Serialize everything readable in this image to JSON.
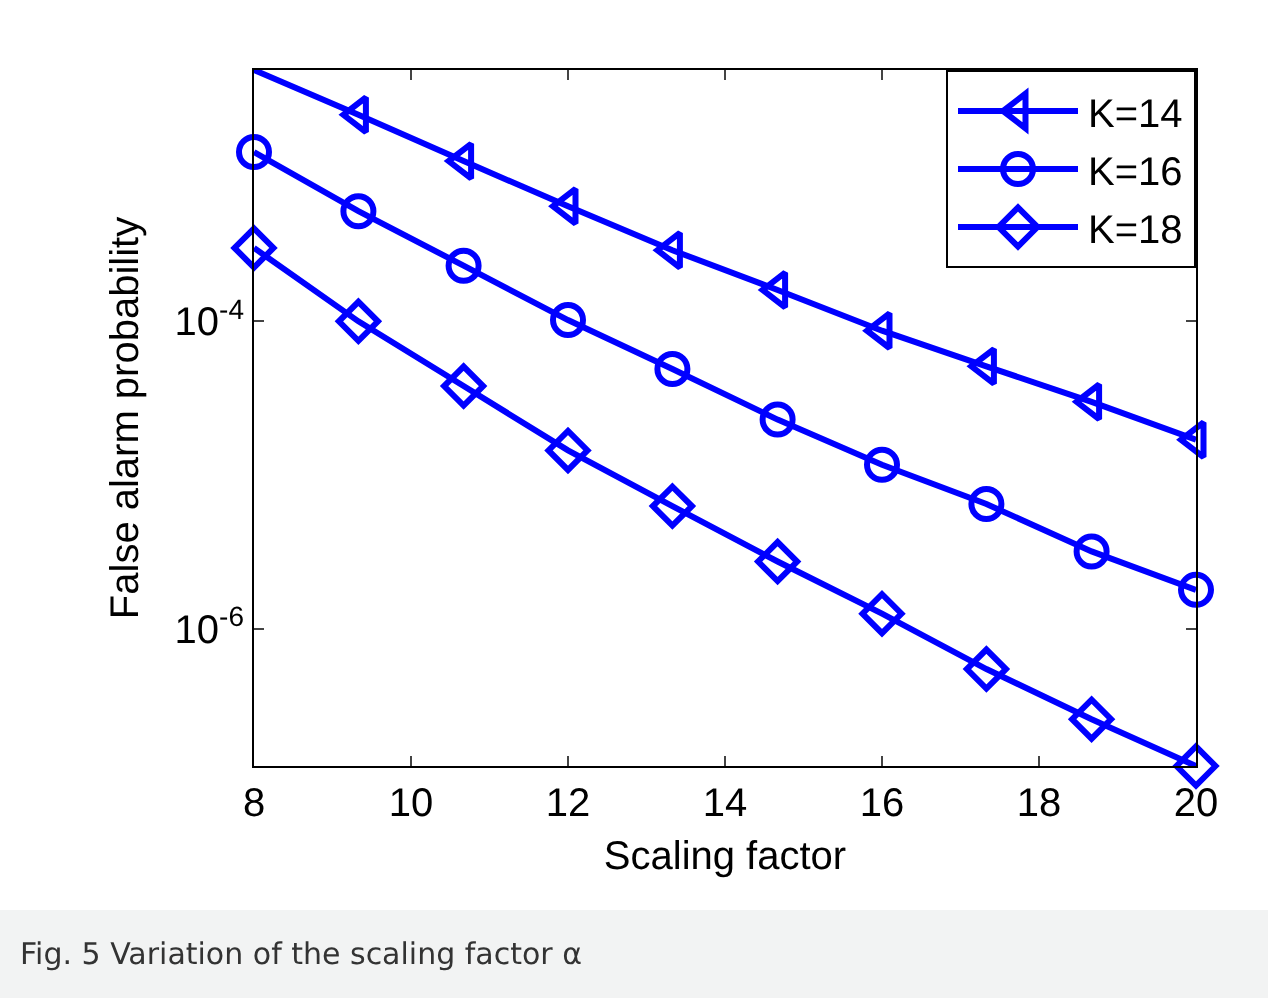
{
  "chart_data": {
    "type": "line",
    "xlabel": "Scaling factor",
    "ylabel": "False alarm probability",
    "annotations": [
      "Fig. 5 Variation of the scaling factor α"
    ],
    "x": [
      8,
      9.33,
      10.67,
      12,
      13.33,
      14.67,
      16,
      17.33,
      18.67,
      20
    ],
    "series": [
      {
        "name": "K=14",
        "color": "#0000ff",
        "marker": "triangle",
        "values": [
          0.0043,
          0.0022,
          0.0011,
          0.00056,
          0.00029,
          0.00016,
          8.7e-05,
          5.1e-05,
          3e-05,
          1.7e-05
        ]
      },
      {
        "name": "K=16",
        "color": "#0000ff",
        "marker": "circle",
        "values": [
          0.00126,
          0.00052,
          0.00023,
          0.000102,
          4.9e-05,
          2.3e-05,
          1.17e-05,
          6.5e-06,
          3.2e-06,
          1.8e-06
        ]
      },
      {
        "name": "K=18",
        "color": "#0000ff",
        "marker": "diamond",
        "values": [
          0.0003,
          0.0001,
          3.8e-05,
          1.45e-05,
          6.3e-06,
          2.75e-06,
          1.26e-06,
          5.5e-07,
          2.6e-07,
          1.29e-07
        ]
      }
    ],
    "xlim": [
      8,
      20
    ],
    "xticks": [
      8,
      10,
      12,
      14,
      16,
      18,
      20
    ],
    "ylim": [
      1.29e-07,
      0.0043
    ],
    "yticks": [
      {
        "value": 0.0001,
        "label": "10$^{-4}$"
      },
      {
        "value": 1e-06,
        "label": "10$^{-6}$"
      }
    ],
    "log": "y",
    "grid": false,
    "legend": "top right",
    "line_style": "solid"
  }
}
